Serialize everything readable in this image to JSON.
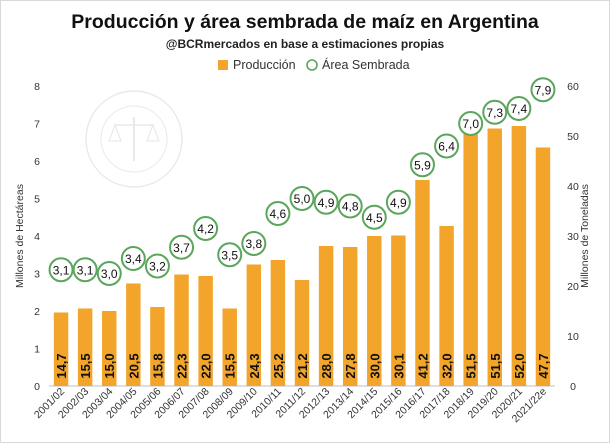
{
  "chart_data": {
    "type": "bar",
    "title": "Producción y área sembrada de maíz en Argentina",
    "subtitle": "@BCRmercados en base a estimaciones propias",
    "ylabel_left": "Millones de Hectáreas",
    "ylabel_right": "Millones de Toneladas",
    "ylim_left": [
      0,
      8
    ],
    "ylim_right": [
      0,
      60
    ],
    "yticks_left": [
      "0",
      "1",
      "2",
      "3",
      "4",
      "5",
      "6",
      "7",
      "8"
    ],
    "yticks_right": [
      "0",
      "10",
      "20",
      "30",
      "40",
      "50",
      "60"
    ],
    "legend_position": "top",
    "grid": false,
    "categories": [
      "2001/02",
      "2002/03",
      "2003/04",
      "2004/05",
      "2005/06",
      "2006/07",
      "2007/08",
      "2008/09",
      "2009/10",
      "2010/11",
      "2011/12",
      "2012/13",
      "2013/14",
      "2014/15",
      "2015/16",
      "2016/17",
      "2017/18",
      "2018/19",
      "2019/20",
      "2020/21",
      "2021/22e"
    ],
    "series": [
      {
        "name": "Producción",
        "type": "bar",
        "axis": "right",
        "color": "#f2a52a",
        "values": [
          14.7,
          15.5,
          15.0,
          20.5,
          15.8,
          22.3,
          22.0,
          15.5,
          24.3,
          25.2,
          21.2,
          28.0,
          27.8,
          30.0,
          30.1,
          41.2,
          32.0,
          51.5,
          51.5,
          52.0,
          47.7
        ],
        "labels": [
          "14,7",
          "15,5",
          "15,0",
          "20,5",
          "15,8",
          "22,3",
          "22,0",
          "15,5",
          "24,3",
          "25,2",
          "21,2",
          "28,0",
          "27,8",
          "30,0",
          "30,1",
          "41,2",
          "32,0",
          "51,5",
          "51,5",
          "52,0",
          "47,7"
        ]
      },
      {
        "name": "Área Sembrada",
        "type": "scatter",
        "axis": "left",
        "color": "#5aa65a",
        "values": [
          3.1,
          3.1,
          3.0,
          3.4,
          3.2,
          3.7,
          4.2,
          3.5,
          3.8,
          4.6,
          5.0,
          4.9,
          4.8,
          4.5,
          4.9,
          5.9,
          6.4,
          7.0,
          7.3,
          7.4,
          7.9
        ],
        "labels": [
          "3,1",
          "3,1",
          "3,0",
          "3,4",
          "3,2",
          "3,7",
          "4,2",
          "3,5",
          "3,8",
          "4,6",
          "5,0",
          "4,9",
          "4,8",
          "4,5",
          "4,9",
          "5,9",
          "6,4",
          "7,0",
          "7,3",
          "7,4",
          "7,9"
        ]
      }
    ],
    "watermark": "BOLSA DE COMERCIO DE ROSARIO"
  }
}
